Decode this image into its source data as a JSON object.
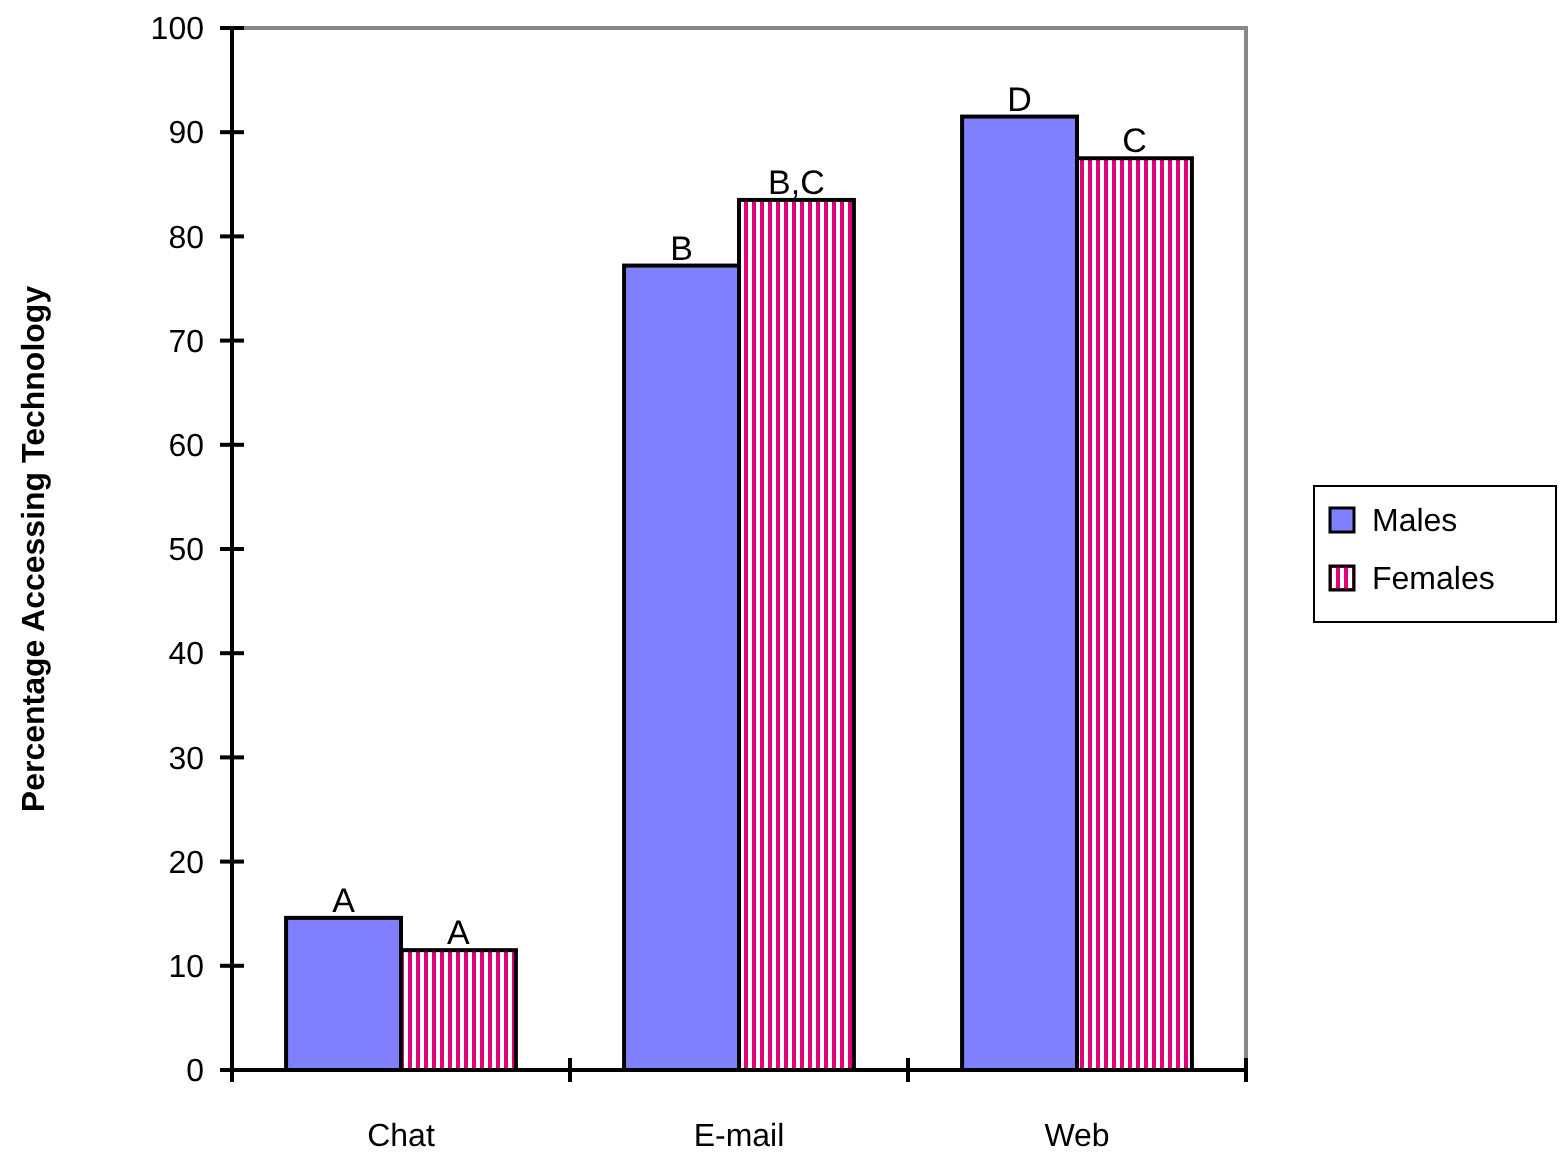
{
  "chart_data": {
    "type": "bar",
    "ylabel": "Percentage Accessing Technology",
    "categories": [
      "Chat",
      "E-mail",
      "Web"
    ],
    "series": [
      {
        "name": "Males",
        "color": "#8080ff",
        "values": [
          14.6,
          77.2,
          91.5
        ],
        "value_labels": [
          "A",
          "B",
          "D"
        ]
      },
      {
        "name": "Females",
        "color": "#e0007a",
        "values": [
          11.5,
          83.5,
          87.5
        ],
        "value_labels": [
          "A",
          "B,C",
          "C"
        ]
      }
    ],
    "ylim": [
      0,
      100
    ],
    "yticks": [
      0,
      10,
      20,
      30,
      40,
      50,
      60,
      70,
      80,
      90,
      100
    ],
    "grid": false,
    "legend": "right"
  }
}
